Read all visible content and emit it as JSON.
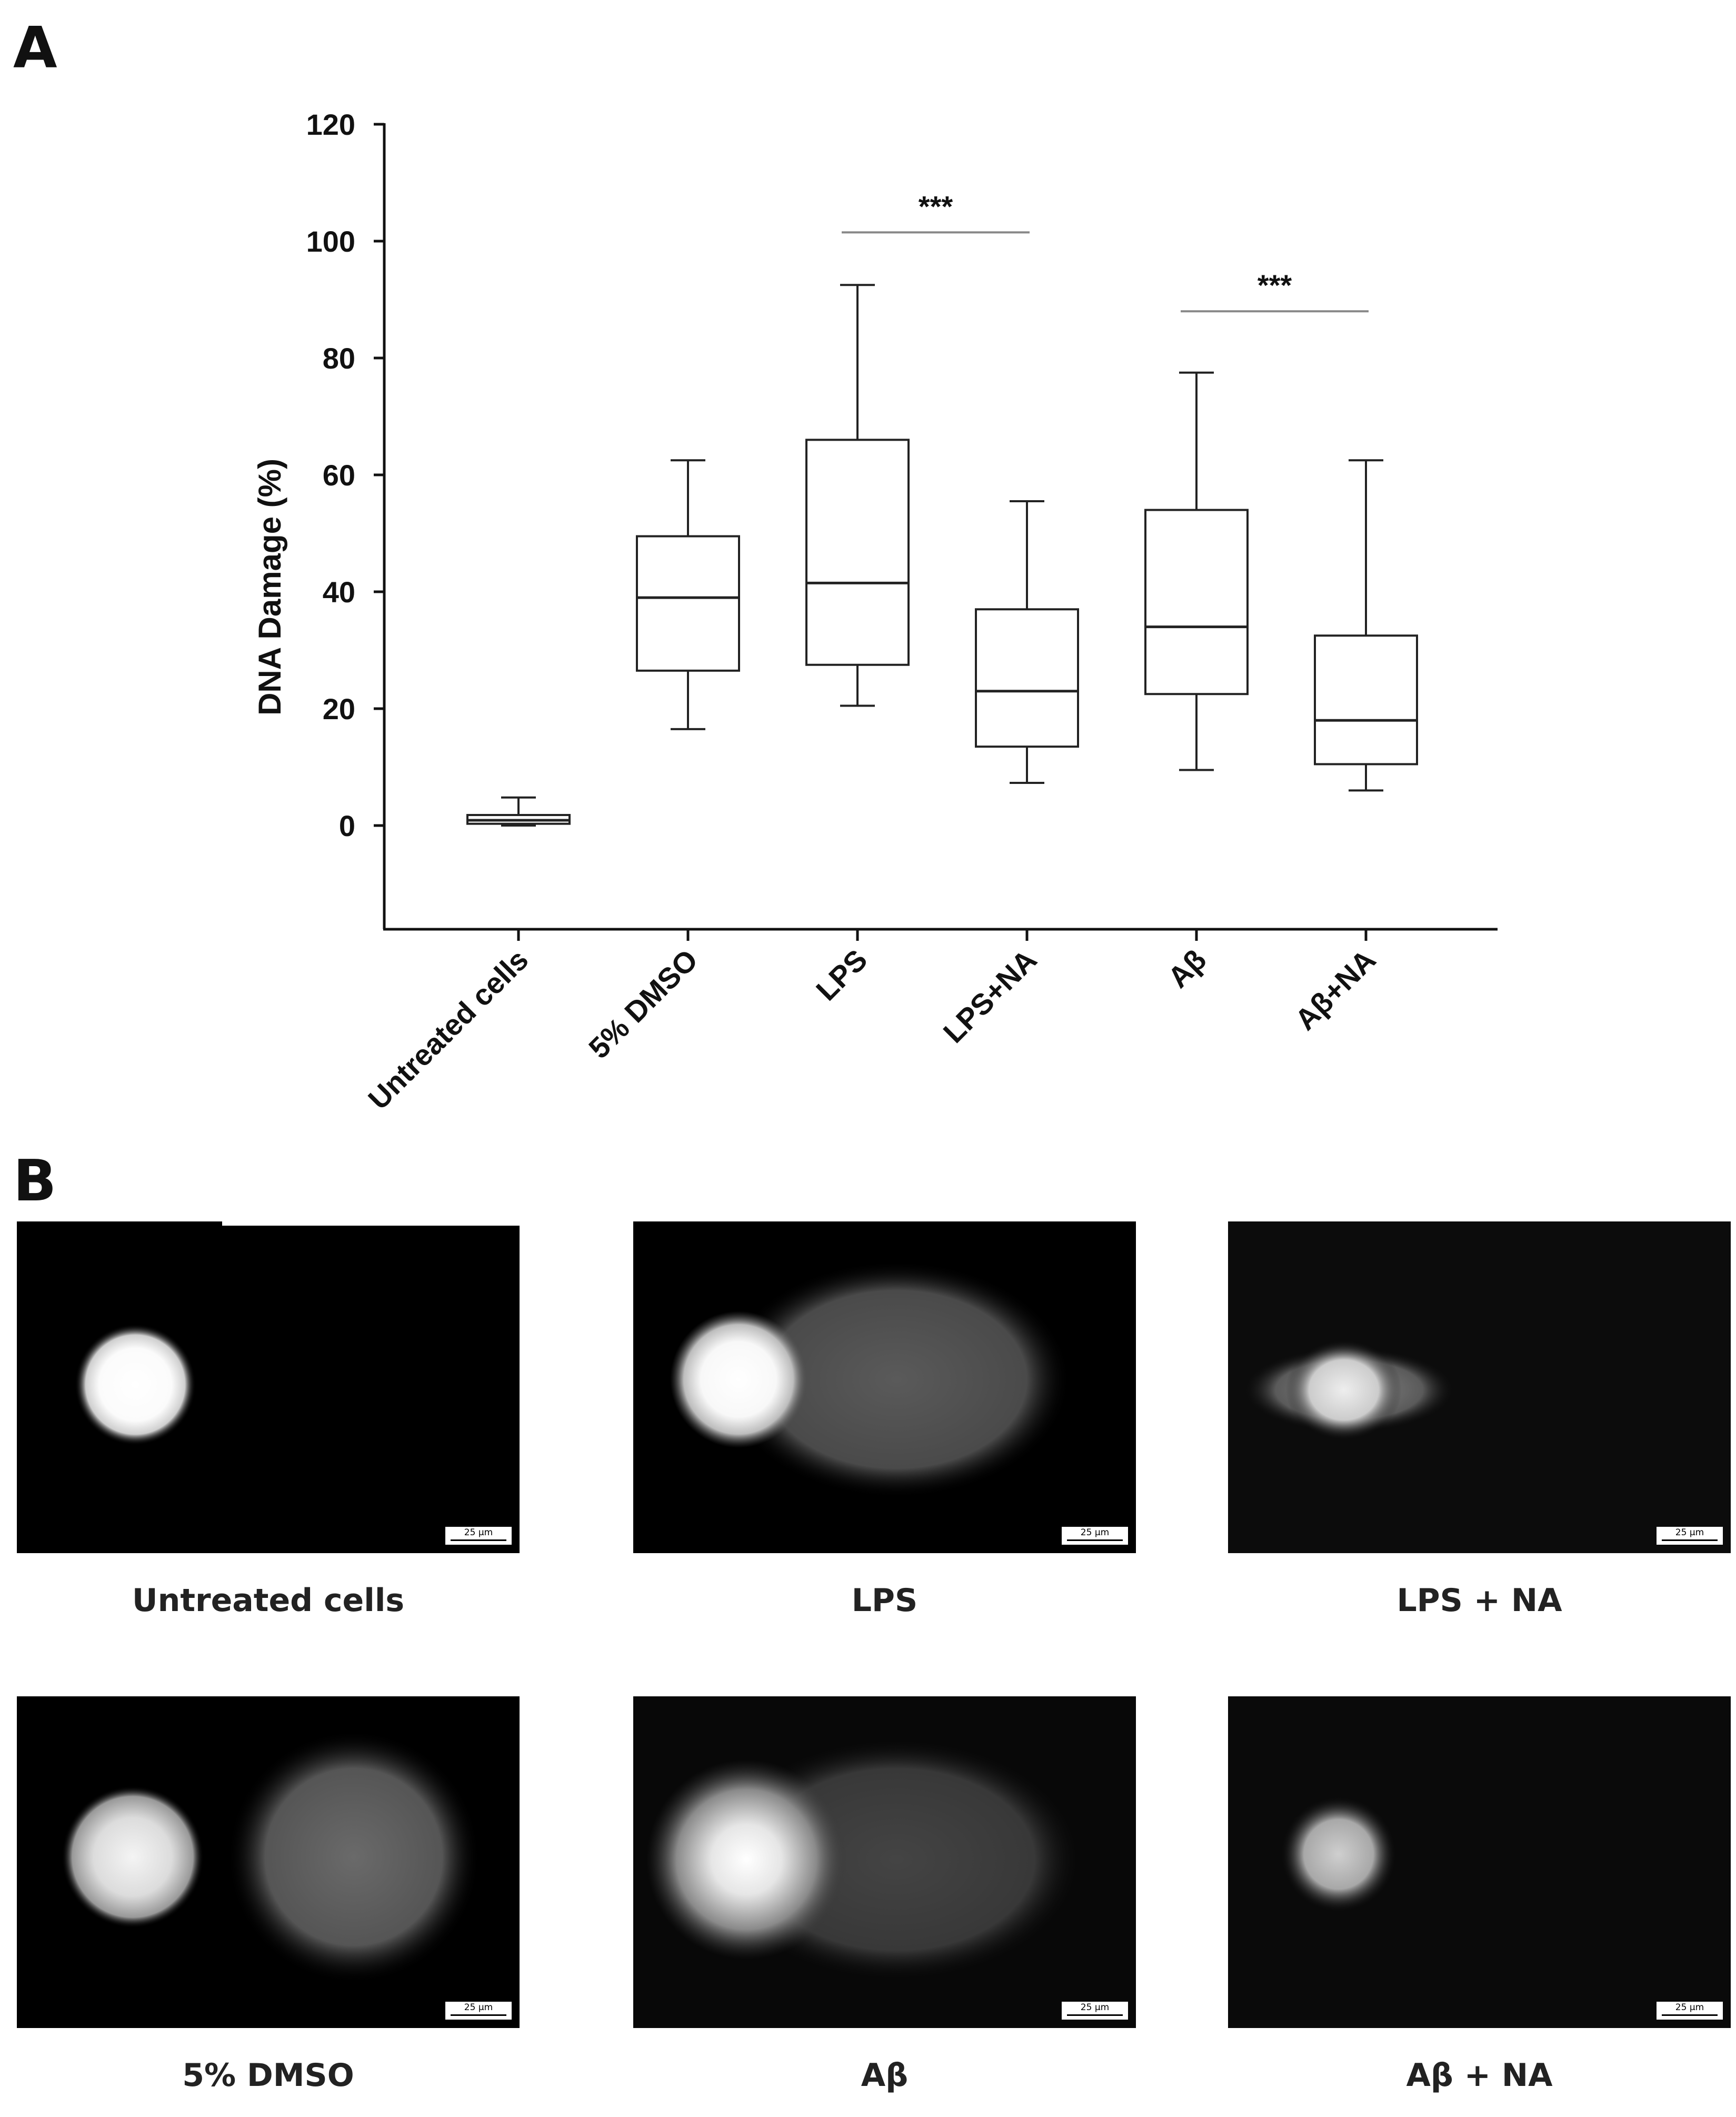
{
  "panel_a_label": "A",
  "panel_b_label": "B",
  "chart_data": {
    "type": "boxplot",
    "title": "",
    "xlabel": "",
    "ylabel": "DNA Damage (%)",
    "ylim": [
      -18,
      120
    ],
    "yticks": [
      0,
      20,
      40,
      60,
      80,
      100,
      120
    ],
    "grid": false,
    "categories": [
      "Untreated cells",
      "5% DMSO",
      "LPS",
      "LPS+NA",
      "Aβ",
      "Aβ+NA"
    ],
    "boxes": [
      {
        "min": 0,
        "q1": 0.3,
        "median": 0.9,
        "q3": 1.8,
        "max": 4.8
      },
      {
        "min": 16.5,
        "q1": 26.5,
        "median": 39,
        "q3": 49.5,
        "max": 62.5
      },
      {
        "min": 20.5,
        "q1": 27.5,
        "median": 41.5,
        "q3": 66,
        "max": 92.5
      },
      {
        "min": 7.3,
        "q1": 13.5,
        "median": 23,
        "q3": 37,
        "max": 55.5
      },
      {
        "min": 9.5,
        "q1": 22.5,
        "median": 34,
        "q3": 54,
        "max": 77.5
      },
      {
        "min": 6,
        "q1": 10.5,
        "median": 18,
        "q3": 32.5,
        "max": 62.5
      }
    ],
    "significance": [
      {
        "from": "LPS",
        "to": "LPS+NA",
        "label": "***",
        "y": 101.5
      },
      {
        "from": "Aβ",
        "to": "Aβ+NA",
        "label": "***",
        "y": 88
      }
    ]
  },
  "micrographs": [
    {
      "caption": "Untreated cells",
      "scale_bar": "25 μm"
    },
    {
      "caption": "LPS",
      "scale_bar": "25 μm"
    },
    {
      "caption": "LPS + NA",
      "scale_bar": "25 μm"
    },
    {
      "caption": "5% DMSO",
      "scale_bar": "25 μm"
    },
    {
      "caption": "Aβ",
      "scale_bar": "25 μm"
    },
    {
      "caption": "Aβ + NA",
      "scale_bar": "25 μm"
    }
  ]
}
